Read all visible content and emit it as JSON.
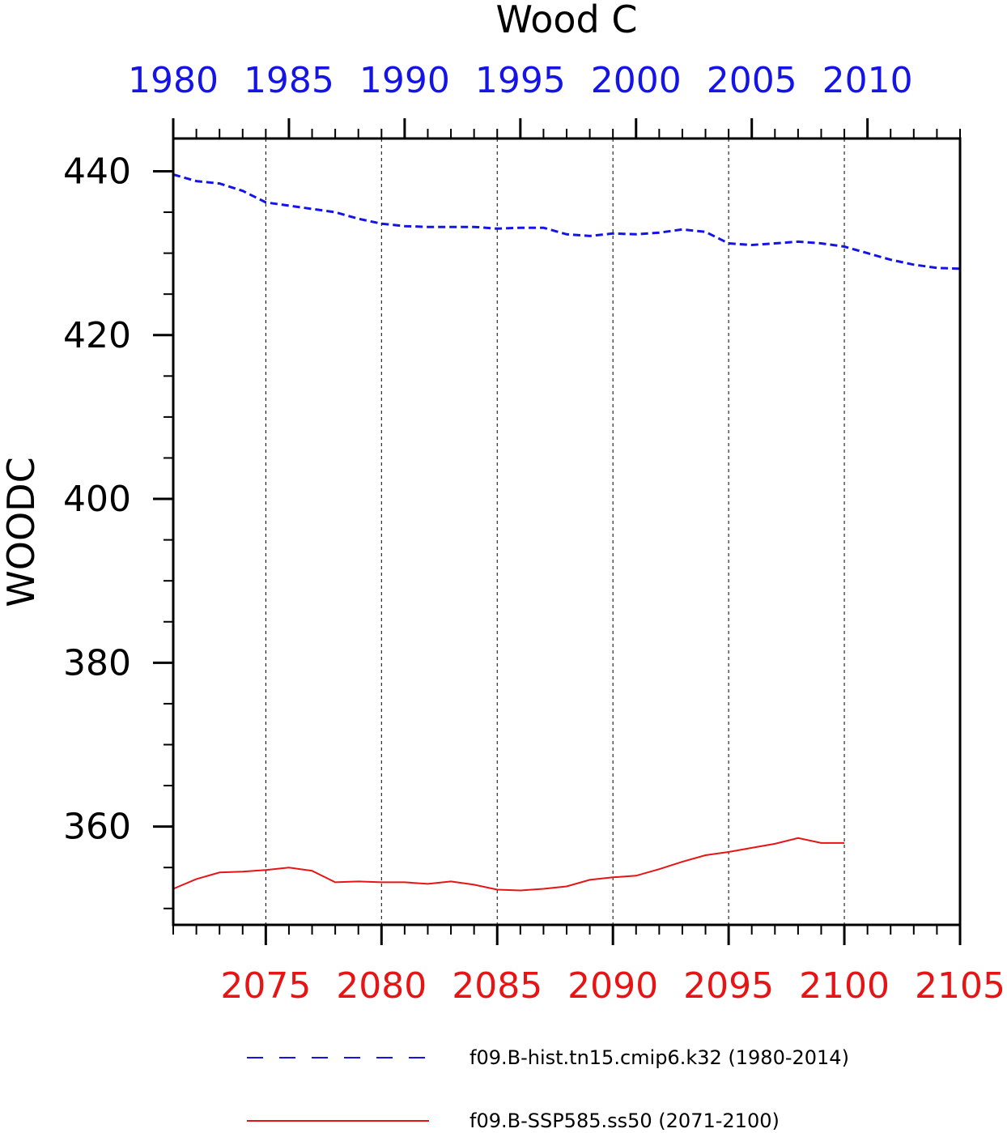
{
  "chart_data": {
    "type": "line",
    "title": "Wood C",
    "ylabel": "WOODC",
    "ylim": [
      348,
      444
    ],
    "yticks": [
      360,
      380,
      400,
      420,
      440
    ],
    "grid": "dashed vertical lines at major x ticks",
    "top_axis": {
      "color": "#1414e6",
      "xlim": [
        1980,
        2014
      ],
      "ticks": [
        1980,
        1985,
        1990,
        1995,
        2000,
        2005,
        2010
      ]
    },
    "bottom_axis": {
      "color": "#e61414",
      "xlim": [
        2071,
        2105
      ],
      "ticks": [
        2075,
        2080,
        2085,
        2090,
        2095,
        2100,
        2105
      ]
    },
    "series": [
      {
        "name": "f09.B-hist.tn15.cmip6.k32 (1980-2014)",
        "axis": "top",
        "color": "#1414e6",
        "style": "dashed",
        "x": [
          1980,
          1981,
          1982,
          1983,
          1984,
          1985,
          1986,
          1987,
          1988,
          1989,
          1990,
          1991,
          1992,
          1993,
          1994,
          1995,
          1996,
          1997,
          1998,
          1999,
          2000,
          2001,
          2002,
          2003,
          2004,
          2005,
          2006,
          2007,
          2008,
          2009,
          2010,
          2011,
          2012,
          2013,
          2014
        ],
        "y": [
          439.6,
          438.8,
          438.5,
          437.6,
          436.2,
          435.8,
          435.4,
          435.0,
          434.2,
          433.6,
          433.3,
          433.2,
          433.2,
          433.2,
          433.0,
          433.1,
          433.1,
          432.3,
          432.1,
          432.4,
          432.3,
          432.5,
          432.9,
          432.6,
          431.2,
          431.0,
          431.2,
          431.4,
          431.2,
          430.8,
          430.0,
          429.2,
          428.6,
          428.2,
          428.1
        ]
      },
      {
        "name": "f09.B-SSP585.ss50 (2071-2100)",
        "axis": "bottom",
        "color": "#e61414",
        "style": "solid",
        "x": [
          2071,
          2072,
          2073,
          2074,
          2075,
          2076,
          2077,
          2078,
          2079,
          2080,
          2081,
          2082,
          2083,
          2084,
          2085,
          2086,
          2087,
          2088,
          2089,
          2090,
          2091,
          2092,
          2093,
          2094,
          2095,
          2096,
          2097,
          2098,
          2099,
          2100
        ],
        "y": [
          352.4,
          353.6,
          354.4,
          354.5,
          354.7,
          355.0,
          354.6,
          353.2,
          353.3,
          353.2,
          353.2,
          353.0,
          353.3,
          352.9,
          352.3,
          352.2,
          352.4,
          352.7,
          353.5,
          353.8,
          354.0,
          354.8,
          355.7,
          356.5,
          356.9,
          357.4,
          357.9,
          358.6,
          358.0,
          358.0
        ]
      }
    ]
  }
}
